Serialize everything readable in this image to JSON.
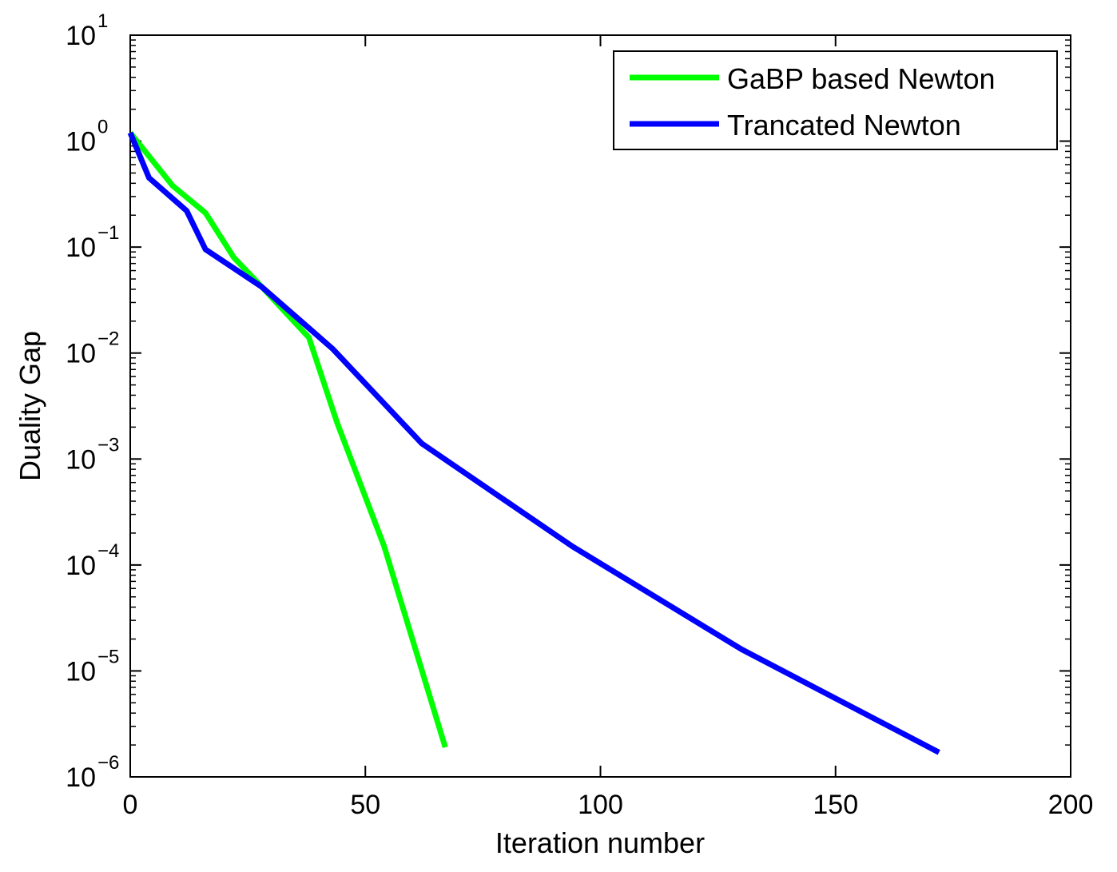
{
  "chart_data": {
    "type": "line",
    "title": "",
    "xlabel": "Iteration number",
    "ylabel": "Duality Gap",
    "xlim": [
      0,
      200
    ],
    "ylim": [
      1e-06,
      10
    ],
    "yscale": "log",
    "grid": false,
    "legend_position": "top-right",
    "x_ticks": [
      0,
      50,
      100,
      150,
      200
    ],
    "y_ticks": [
      {
        "value": 1e-06,
        "base": "10",
        "exp": "−6"
      },
      {
        "value": 1e-05,
        "base": "10",
        "exp": "−5"
      },
      {
        "value": 0.0001,
        "base": "10",
        "exp": "−4"
      },
      {
        "value": 0.001,
        "base": "10",
        "exp": "−3"
      },
      {
        "value": 0.01,
        "base": "10",
        "exp": "−2"
      },
      {
        "value": 0.1,
        "base": "10",
        "exp": "−1"
      },
      {
        "value": 1,
        "base": "10",
        "exp": "0"
      },
      {
        "value": 10,
        "base": "10",
        "exp": "1"
      }
    ],
    "series": [
      {
        "name": "GaBP based Newton",
        "color": "#00ff00",
        "x": [
          0,
          9,
          16,
          22,
          28,
          38,
          44,
          54,
          67
        ],
        "y": [
          1.2,
          0.38,
          0.21,
          0.08,
          0.042,
          0.014,
          0.0022,
          0.00015,
          1.9e-06
        ]
      },
      {
        "name": "Trancated Newton",
        "color": "#0000ff",
        "x": [
          0,
          4,
          12,
          16,
          28,
          43,
          62,
          94,
          130,
          172
        ],
        "y": [
          1.2,
          0.45,
          0.22,
          0.095,
          0.042,
          0.011,
          0.0014,
          0.00015,
          1.6e-05,
          1.7e-06
        ]
      }
    ]
  }
}
